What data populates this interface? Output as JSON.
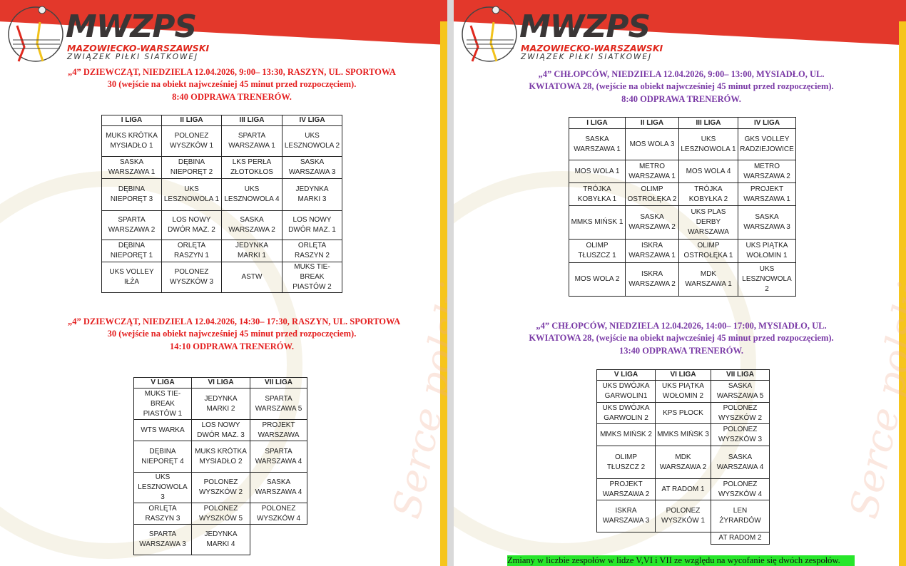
{
  "logo": {
    "abbr": "MWZPS",
    "line1": "MAZOWIECKO-WARSZAWSKI",
    "line2": "ZWIĄZEK PIŁKI SIATKOWEJ"
  },
  "watermark": "Serce polskiej siatkówki!",
  "colors": {
    "girls_heading": "#e41e1e",
    "boys_heading": "#7a3aa6",
    "note_highlight": "#27e62a",
    "band_red": "#e3382b",
    "band_yellow": "#f6c51c"
  },
  "sections": [
    {
      "heading": [
        "„4” DZIEWCZĄT, NIEDZIELA 12.04.2026, 9:00– 13:30, RASZYN, UL. SPORTOWA",
        "30 (wejście na obiekt najwcześniej 45 minut przed rozpoczęciem).",
        "8:40 ODPRAWA TRENERÓW."
      ],
      "table": {
        "headers": [
          "I LIGA",
          "II LIGA",
          "III LIGA",
          "IV LIGA"
        ],
        "rows": [
          [
            "MUKS KRÓTKA MYSIADŁO 1",
            "POLONEZ WYSZKÓW 1",
            "SPARTA WARSZAWA 1",
            "UKS LESZNOWOLA 2"
          ],
          [
            "SASKA WARSZAWA 1",
            "DĘBINA NIEPORĘT 2",
            "LKS PERŁA ZŁOTOKŁOS",
            "SASKA WARSZAWA 3"
          ],
          [
            "DĘBINA NIEPORĘT 3",
            "UKS LESZNOWOLA 1",
            "UKS LESZNOWOLA 4",
            "JEDYNKA MARKI 3"
          ],
          [
            "SPARTA WARSZAWA 2",
            "LOS NOWY DWÓR MAZ. 2",
            "SASKA WARSZAWA 2",
            "LOS NOWY DWÓR MAZ. 1"
          ],
          [
            "DĘBINA NIEPORĘT 1",
            "ORLĘTA RASZYN 1",
            "JEDYNKA MARKI 1",
            "ORLĘTA RASZYN 2"
          ],
          [
            "UKS VOLLEY IŁŻA",
            "POLONEZ WYSZKÓW 3",
            "ASTW",
            "MUKS TIE-BREAK PIASTÓW 2"
          ]
        ]
      }
    },
    {
      "heading": [
        "„4” DZIEWCZĄT, NIEDZIELA 12.04.2026, 14:30– 17:30, RASZYN, UL. SPORTOWA",
        "30 (wejście na obiekt najwcześniej 45 minut przed rozpoczęciem).",
        "14:10 ODPRAWA TRENERÓW."
      ],
      "table": {
        "headers": [
          "V LIGA",
          "VI LIGA",
          "VII LIGA"
        ],
        "rows": [
          [
            "MUKS TIE-BREAK PIASTÓW 1",
            "JEDYNKA MARKI 2",
            "SPARTA WARSZAWA 5"
          ],
          [
            "WTS WARKA",
            "LOS NOWY DWÓR MAZ. 3",
            "PROJEKT WARSZAWA"
          ],
          [
            "DĘBINA NIEPORĘT 4",
            "MUKS KRÓTKA MYSIADŁO 2",
            "SPARTA WARSZAWA 4"
          ],
          [
            "UKS LESZNOWOLA 3",
            "POLONEZ WYSZKÓW 2",
            "SASKA WARSZAWA 4"
          ],
          [
            "ORLĘTA RASZYN 3",
            "POLONEZ WYSZKÓW 5",
            "POLONEZ WYSZKÓW 4"
          ],
          [
            "SPARTA WARSZAWA 3",
            "JEDYNKA MARKI 4",
            ""
          ]
        ]
      }
    },
    {
      "heading": [
        "„4” CHŁOPCÓW, NIEDZIELA 12.04.2026, 9:00– 13:00, MYSIADŁO, UL.",
        "KWIATOWA 28, (wejście na obiekt najwcześniej 45 minut przed rozpoczęciem).",
        "8:40 ODPRAWA TRENERÓW."
      ],
      "table": {
        "headers": [
          "I LIGA",
          "II LIGA",
          "III LIGA",
          "IV LIGA"
        ],
        "rows": [
          [
            "SASKA WARSZAWA 1",
            "MOS WOLA 3",
            "UKS LESZNOWOLA 1",
            "GKS VOLLEY RADZIEJOWICE"
          ],
          [
            "MOS WOLA 1",
            "METRO WARSZAWA 1",
            "MOS WOLA 4",
            "METRO WARSZAWA 2"
          ],
          [
            "TRÓJKA KOBYŁKA 1",
            "OLIMP OSTROŁĘKA 2",
            "TRÓJKA KOBYŁKA 2",
            "PROJEKT WARSZAWA 1"
          ],
          [
            "MMKS MIŃSK 1",
            "SASKA WARSZAWA 2",
            "UKS PLAS DERBY WARSZAWA",
            "SASKA WARSZAWA 3"
          ],
          [
            "OLIMP TŁUSZCZ 1",
            "ISKRA WARSZAWA 1",
            "OLIMP OSTROŁĘKA 1",
            "UKS PIĄTKA WOŁOMIN 1"
          ],
          [
            "MOS WOLA 2",
            "ISKRA WARSZAWA 2",
            "MDK WARSZAWA 1",
            "UKS LESZNOWOLA 2"
          ]
        ]
      }
    },
    {
      "heading": [
        "„4” CHŁOPCÓW, NIEDZIELA 12.04.2026, 14:00– 17:00, MYSIADŁO, UL.",
        "KWIATOWA 28, (wejście na obiekt najwcześniej 45 minut przed rozpoczęciem).",
        "13:40 ODPRAWA TRENERÓW."
      ],
      "table": {
        "headers": [
          "V LIGA",
          "VI LIGA",
          "VII LIGA"
        ],
        "rows": [
          [
            "UKS DWÓJKA GARWOLIN1",
            "UKS PIĄTKA WOŁOMIN 2",
            "SASKA WARSZAWA 5"
          ],
          [
            "UKS DWÓJKA GARWOLIN 2",
            "KPS PŁOCK",
            "POLONEZ WYSZKÓW 2"
          ],
          [
            "MMKS MIŃSK 2",
            "MMKS MIŃSK 3",
            "POLONEZ WYSZKÓW 3"
          ],
          [
            "OLIMP TŁUSZCZ 2",
            "MDK WARSZAWA 2",
            "SASKA WARSZAWA 4"
          ],
          [
            "PROJEKT WARSZAWA 2",
            "AT RADOM 1",
            "POLONEZ WYSZKÓW 4"
          ],
          [
            "ISKRA WARSZAWA 3",
            "POLONEZ WYSZKÓW 1",
            "LEN ŻYRARDÓW"
          ],
          [
            "",
            "",
            "AT RADOM 2"
          ]
        ]
      }
    }
  ],
  "note": "Zmiany w liczbie zespołów w lidze V,VI i VII ze względu na wycofanie się dwóch zespołów."
}
